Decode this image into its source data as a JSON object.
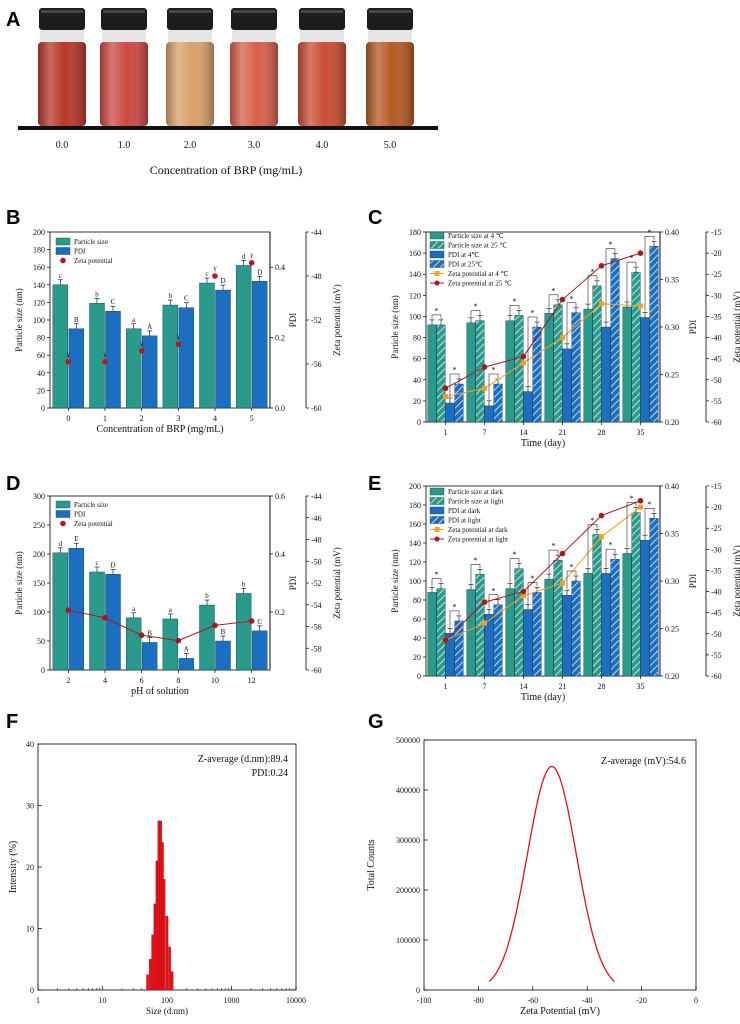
{
  "panel_labels": [
    "A",
    "B",
    "C",
    "D",
    "E",
    "F",
    "G"
  ],
  "chart_data": [
    {
      "panel": "A",
      "type": "photo",
      "caption": "Concentration of BRP (mg/mL)",
      "categories": [
        "0.0",
        "1.0",
        "2.0",
        "3.0",
        "4.0",
        "5.0"
      ],
      "colors": [
        "#b8382a",
        "#cc4a44",
        "#d9a06a",
        "#d8604a",
        "#cc4e34",
        "#b55a22"
      ]
    },
    {
      "panel": "B",
      "type": "bar",
      "xlabel": "Concentration of BRP (mg/mL)",
      "ylabel": "Particle size (nm)",
      "y2label": "PDI",
      "y3label": "Zeta potential (mV)",
      "categories": [
        "0",
        "1",
        "2",
        "3",
        "4",
        "5"
      ],
      "ylim": [
        0,
        200
      ],
      "yticks": [
        "0",
        "20",
        "40",
        "60",
        "80",
        "100",
        "120",
        "140",
        "160",
        "180",
        "200"
      ],
      "y2lim": [
        0,
        0.5
      ],
      "y2ticks": [
        "0.0",
        "0.2",
        "0.4"
      ],
      "y3lim": [
        -60,
        -44
      ],
      "y3ticks": [
        "-60",
        "-56",
        "-52",
        "-48",
        "-44"
      ],
      "series": [
        {
          "name": "Particle size",
          "axis": "y",
          "values": [
            140,
            119,
            90,
            117,
            142,
            162
          ],
          "letters": [
            "c",
            "b",
            "a",
            "b",
            "c",
            "d"
          ]
        },
        {
          "name": "PDI",
          "axis": "y2",
          "values": [
            0.225,
            0.275,
            0.205,
            0.285,
            0.335,
            0.36
          ],
          "letters": [
            "B",
            "C",
            "A",
            "C",
            "D",
            "D"
          ]
        },
        {
          "name": "Zeta potential",
          "axis": "y3",
          "values": [
            -55.8,
            -55.8,
            -54.8,
            -54.2,
            -48.0,
            -46.8
          ],
          "letters": [
            "γ",
            "γ",
            "γ",
            "γ",
            "γ",
            "γ"
          ]
        }
      ],
      "legend": [
        "Particle size",
        "PDI",
        "Zeta potential"
      ]
    },
    {
      "panel": "C",
      "type": "bar",
      "xlabel": "Time (day)",
      "ylabel": "Particle size (nm)",
      "y2label": "PDI",
      "y3label": "Zeta potential (mV)",
      "categories": [
        "1",
        "7",
        "14",
        "21",
        "28",
        "35"
      ],
      "ylim": [
        0,
        180
      ],
      "yticks": [
        "0",
        "20",
        "40",
        "60",
        "80",
        "100",
        "120",
        "140",
        "160",
        "180"
      ],
      "y2lim": [
        0.2,
        0.4
      ],
      "y2ticks": [
        "0.20",
        "0.25",
        "0.30",
        "0.35",
        "0.40"
      ],
      "y3lim": [
        -60,
        -15
      ],
      "y3ticks": [
        "-60",
        "-55",
        "-50",
        "-45",
        "-40",
        "-35",
        "-30",
        "-25",
        "-20",
        "-15"
      ],
      "series": [
        {
          "name": "Particle size at 4 ℃",
          "axis": "y",
          "values": [
            92,
            94,
            96,
            103,
            107,
            109
          ]
        },
        {
          "name": "Particle size at 25 ℃",
          "axis": "y",
          "values": [
            92,
            96,
            101,
            111,
            129,
            142
          ]
        },
        {
          "name": "PDI at 4℃",
          "axis": "y2",
          "values": [
            0.22,
            0.217,
            0.232,
            0.277,
            0.3,
            0.31
          ]
        },
        {
          "name": "PDI at 25℃",
          "axis": "y2",
          "values": [
            0.24,
            0.24,
            0.3,
            0.315,
            0.372,
            0.385
          ]
        },
        {
          "name": "Zeta potential at 4 ℃",
          "axis": "y3",
          "values": [
            -54,
            -52,
            -46,
            -40,
            -32,
            -32.5
          ]
        },
        {
          "name": "Zeta potential at 25 ℃",
          "axis": "y3",
          "values": [
            -52,
            -47,
            -44.5,
            -31,
            -23,
            -20
          ]
        }
      ],
      "legend": [
        "Particle size at 4 ℃",
        "Particle size at 25 ℃",
        "PDI at 4℃",
        "PDI at 25℃",
        "Zeta potential at 4 ℃",
        "Zeta potential at 25 ℃"
      ],
      "sig_mark": "*"
    },
    {
      "panel": "D",
      "type": "bar",
      "xlabel": "pH of solution",
      "ylabel": "Particle size (nm)",
      "y2label": "PDI",
      "y3label": "Zeta potential (mV)",
      "categories": [
        "2",
        "4",
        "6",
        "8",
        "10",
        "12"
      ],
      "ylim": [
        0,
        300
      ],
      "yticks": [
        "0",
        "50",
        "100",
        "150",
        "200",
        "250",
        "300"
      ],
      "y2lim": [
        0,
        0.6
      ],
      "y2ticks": [
        "0.2",
        "0.4",
        "0.6"
      ],
      "y3lim": [
        -60,
        -44
      ],
      "y3ticks": [
        "-60",
        "-58",
        "-56",
        "-54",
        "-52",
        "-50",
        "-48",
        "-46",
        "-44"
      ],
      "series": [
        {
          "name": "Particle size",
          "axis": "y",
          "values": [
            202,
            169,
            90,
            88,
            112,
            132
          ],
          "letters": [
            "d",
            "c",
            "a",
            "a",
            "b",
            "b"
          ]
        },
        {
          "name": "PDI",
          "axis": "y2",
          "values": [
            0.42,
            0.33,
            0.095,
            0.04,
            0.1,
            0.135
          ],
          "letters": [
            "E",
            "D",
            "B",
            "A",
            "B",
            "C"
          ]
        },
        {
          "name": "Zeta potential",
          "axis": "y3",
          "values": [
            -54.5,
            -55.2,
            -56.8,
            -57.3,
            -55.9,
            -55.5
          ]
        }
      ],
      "legend": [
        "Particle size",
        "PDI",
        "Zeta potential"
      ]
    },
    {
      "panel": "E",
      "type": "bar",
      "xlabel": "Time (day)",
      "ylabel": "Particle size (nm)",
      "y2label": "PDI",
      "y3label": "Zeta potential (mV)",
      "categories": [
        "1",
        "7",
        "14",
        "21",
        "28",
        "35"
      ],
      "ylim": [
        0,
        200
      ],
      "yticks": [
        "0",
        "20",
        "40",
        "60",
        "80",
        "100",
        "120",
        "140",
        "160",
        "180",
        "200"
      ],
      "y2lim": [
        0.2,
        0.4
      ],
      "y2ticks": [
        "0.20",
        "0.25",
        "0.30",
        "0.35",
        "0.40"
      ],
      "y3lim": [
        -60,
        -15
      ],
      "y3ticks": [
        "-60",
        "-55",
        "-50",
        "-45",
        "-40",
        "-35",
        "-30",
        "-25",
        "-20",
        "-15"
      ],
      "series": [
        {
          "name": "Particle size at dark",
          "axis": "y",
          "values": [
            88,
            91,
            92,
            102,
            108,
            129
          ]
        },
        {
          "name": "Particle size at light",
          "axis": "y",
          "values": [
            92,
            107,
            113,
            122,
            149,
            172
          ]
        },
        {
          "name": "PDI at dark",
          "axis": "y2",
          "values": [
            0.245,
            0.265,
            0.27,
            0.285,
            0.308,
            0.343
          ]
        },
        {
          "name": "PDI at light",
          "axis": "y2",
          "values": [
            0.258,
            0.275,
            0.288,
            0.3,
            0.323,
            0.366
          ]
        },
        {
          "name": "Zeta potential at dark",
          "axis": "y3",
          "values": [
            -51.5,
            -47.5,
            -41,
            -38,
            -27,
            -20
          ]
        },
        {
          "name": "Zeta potential at light",
          "axis": "y3",
          "values": [
            -51.5,
            -42.5,
            -40,
            -31,
            -22,
            -18.5
          ]
        }
      ],
      "legend": [
        "Particle size at dark",
        "Particle size at light",
        "PDI at dark",
        "PDI at light",
        "Zeta potential at dark",
        "Zeta potential at light"
      ],
      "sig_mark": "*"
    },
    {
      "panel": "F",
      "type": "histogram",
      "xlabel": "Size (d.nm)",
      "ylabel": "Intensity (%)",
      "xscale": "log",
      "xlim": [
        1,
        10000
      ],
      "xticks": [
        "1",
        "10",
        "100",
        "1000",
        "10000"
      ],
      "ylim": [
        0,
        40
      ],
      "yticks": [
        "0",
        "10",
        "20",
        "30",
        "40"
      ],
      "x": [
        50,
        55,
        60,
        65,
        70,
        75,
        80,
        85,
        90,
        100,
        110,
        120
      ],
      "values": [
        2.5,
        5,
        9,
        14,
        21,
        27.5,
        27.5,
        24,
        18,
        12,
        7,
        3
      ],
      "annotation_1": "Z-average (d.nm):89.4",
      "annotation_2": "PDI:0.24"
    },
    {
      "panel": "G",
      "type": "line",
      "xlabel": "Zeta Potential (mV)",
      "ylabel": "Total Counts",
      "xlim": [
        -100,
        0
      ],
      "xticks": [
        "-100",
        "-80",
        "-60",
        "-40",
        "-20",
        "0"
      ],
      "ylim": [
        0,
        500000
      ],
      "yticks": [
        "0",
        "100000",
        "200000",
        "300000",
        "400000",
        "500000"
      ],
      "peak_x": -53,
      "peak_y": 447000,
      "sigma": 9,
      "annotation": "Z-average (mV):54.6"
    }
  ]
}
